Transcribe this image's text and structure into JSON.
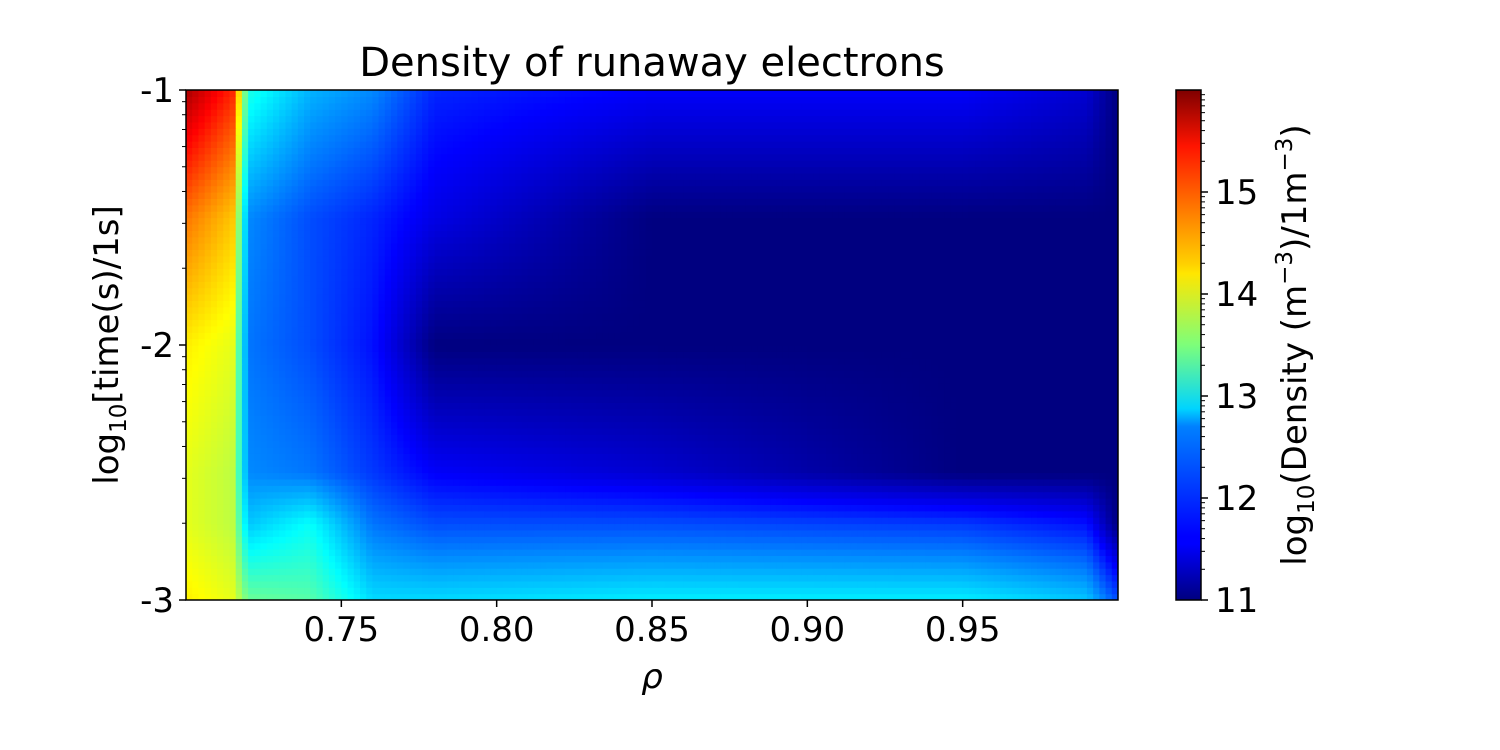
{
  "chart_data": {
    "type": "heatmap",
    "title": "Density of runaway electrons",
    "xlabel": "ρ",
    "ylabel_parts": {
      "pre": "log",
      "sub": "10",
      "post": "[time(s)/1s]"
    },
    "colorbar_label_parts": {
      "pre": "log",
      "sub": "10",
      "mid": "(Density (m",
      "sup1": "−3",
      "mid2": ")/1m",
      "sup2": "−3",
      "post": ")"
    },
    "xlim": [
      0.7,
      1.0
    ],
    "ylim": [
      -3,
      -1
    ],
    "xticks": [
      0.75,
      0.8,
      0.85,
      0.9,
      0.95
    ],
    "xtick_labels": [
      "0.75",
      "0.80",
      "0.85",
      "0.90",
      "0.95"
    ],
    "yticks": [
      -3,
      -2,
      -1
    ],
    "ytick_labels": [
      "-3",
      "-2",
      "-1"
    ],
    "y_scale": "log",
    "colorbar": {
      "range": [
        11,
        16
      ],
      "ticks": [
        11,
        12,
        13,
        14,
        15
      ],
      "tick_labels": [
        "11",
        "12",
        "13",
        "14",
        "15"
      ],
      "colormap": "jet"
    },
    "z_samples": {
      "description_x": "rho",
      "rho": [
        0.7,
        0.715,
        0.72,
        0.74,
        0.76,
        0.78,
        0.85,
        0.95,
        0.99,
        1.0
      ],
      "log_time": [
        -3.0,
        -2.7,
        -2.5,
        -2.0,
        -1.5,
        -1.0
      ],
      "values": [
        [
          14.2,
          14.0,
          13.4,
          13.3,
          12.7,
          12.7,
          12.8,
          12.8,
          12.6,
          12.0
        ],
        [
          14.0,
          13.8,
          12.6,
          12.9,
          12.2,
          12.0,
          12.0,
          11.9,
          11.7,
          11.0
        ],
        [
          14.0,
          13.8,
          12.3,
          12.2,
          11.9,
          11.6,
          11.4,
          11.0,
          11.0,
          11.0
        ],
        [
          14.2,
          14.0,
          12.2,
          12.0,
          11.7,
          11.0,
          11.0,
          11.0,
          11.0,
          11.0
        ],
        [
          14.8,
          14.4,
          12.3,
          12.0,
          11.8,
          11.5,
          11.0,
          11.0,
          11.0,
          11.0
        ],
        [
          15.8,
          15.2,
          13.0,
          12.5,
          12.3,
          11.8,
          11.6,
          11.6,
          11.4,
          11.0
        ]
      ]
    }
  }
}
